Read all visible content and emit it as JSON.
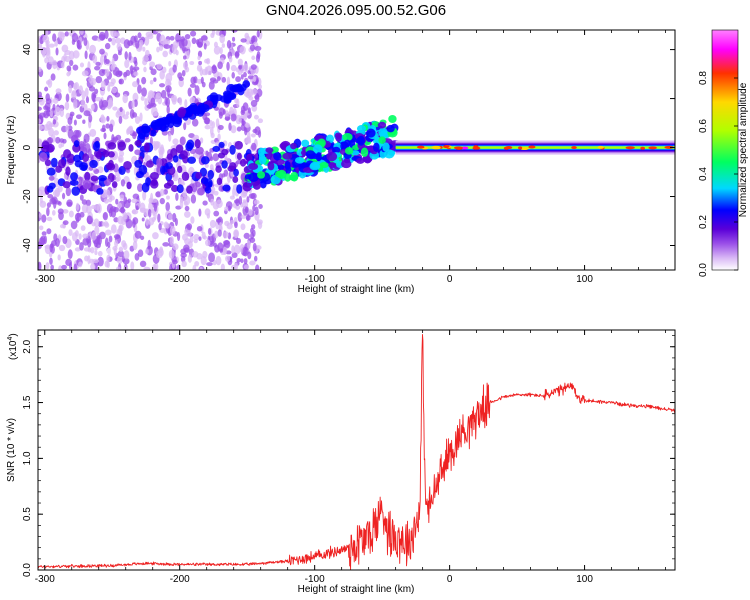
{
  "figure_title": "GN04.2026.095.00.52.G06",
  "chart_data": [
    {
      "type": "heatmap",
      "name": "spectrogram",
      "xlabel": "Height of straight line (km)",
      "ylabel": "Frequency (Hz)",
      "xlim": [
        -305,
        167
      ],
      "ylim": [
        -50,
        48
      ],
      "xticks": [
        -300,
        -200,
        -100,
        0,
        100
      ],
      "yticks": [
        -40,
        -20,
        0,
        20,
        40
      ],
      "colorbar": {
        "label": "Normalized spectral amplitude",
        "range": [
          0.0,
          1.0
        ],
        "ticks": [
          0.0,
          0.2,
          0.4,
          0.6,
          0.8
        ],
        "tick_labels": [
          "0.0",
          "0.2",
          "0.4",
          "0.6",
          "0.8"
        ],
        "colormap": [
          "#ffffff",
          "#d9b8f5",
          "#9a4fe8",
          "#5a00d8",
          "#0000ff",
          "#00d8ff",
          "#00ff60",
          "#b0ff00",
          "#ffd800",
          "#ff3000",
          "#ff00ff",
          "#ff80ff"
        ]
      },
      "features": [
        {
          "description": "scattered noise region",
          "x_range": [
            -305,
            -140
          ],
          "freq_range": [
            -50,
            48
          ],
          "amplitude": 0.15
        },
        {
          "description": "ascending feature",
          "x_start": -230,
          "x_end": -150,
          "freq_start": 5,
          "freq_end": 25,
          "amplitude": 0.3
        },
        {
          "description": "transition zone",
          "x_range": [
            -150,
            -40
          ],
          "freq_center_start": -10,
          "freq_center_end": 5,
          "amplitude": 0.45
        },
        {
          "description": "main carrier line",
          "x_range": [
            -40,
            167
          ],
          "freq": 0,
          "amplitude": 0.75
        }
      ]
    },
    {
      "type": "line",
      "name": "snr",
      "xlabel": "Height of straight line (km)",
      "ylabel": "SNR (10 * v/v)",
      "y_multiplier": "(x10",
      "y_multiplier_exp": "4",
      "xlim": [
        -305,
        167
      ],
      "ylim": [
        0.0,
        2.15
      ],
      "xticks": [
        -300,
        -200,
        -100,
        0,
        100
      ],
      "yticks": [
        0.0,
        0.5,
        1.0,
        1.5,
        2.0
      ],
      "ytick_labels": [
        "0.0",
        "0.5",
        "1.0",
        "1.5",
        "2.0"
      ],
      "series": [
        {
          "name": "SNR",
          "color": "#ee2222",
          "x": [
            -305,
            -250,
            -225,
            -200,
            -150,
            -120,
            -100,
            -80,
            -70,
            -60,
            -55,
            -50,
            -45,
            -40,
            -35,
            -30,
            -25,
            -22,
            -20,
            -18,
            -15,
            -10,
            -5,
            0,
            5,
            10,
            15,
            20,
            25,
            30,
            40,
            50,
            60,
            70,
            75,
            80,
            85,
            90,
            95,
            100,
            110,
            120,
            130,
            140,
            150,
            160,
            167
          ],
          "y": [
            0.03,
            0.04,
            0.06,
            0.05,
            0.05,
            0.08,
            0.12,
            0.18,
            0.22,
            0.3,
            0.4,
            0.55,
            0.35,
            0.3,
            0.28,
            0.25,
            0.4,
            0.6,
            2.1,
            0.6,
            0.55,
            0.75,
            0.9,
            1.05,
            1.15,
            1.25,
            1.3,
            1.38,
            1.45,
            1.5,
            1.55,
            1.57,
            1.57,
            1.56,
            1.58,
            1.6,
            1.62,
            1.65,
            1.55,
            1.52,
            1.51,
            1.5,
            1.48,
            1.47,
            1.46,
            1.44,
            1.43
          ]
        }
      ]
    }
  ]
}
